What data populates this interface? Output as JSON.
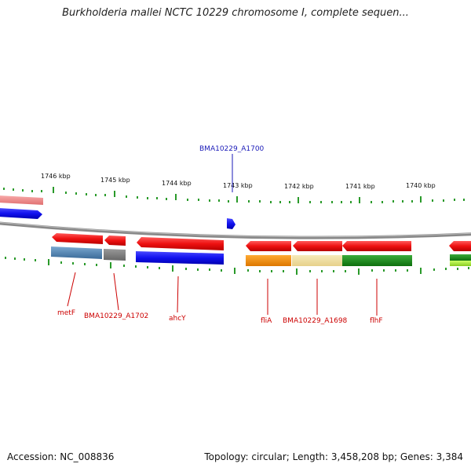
{
  "title": "Burkholderia mallei NCTC 10229 chromosome I, complete sequen...",
  "footer": {
    "accession": "Accession: NC_008836",
    "summary": "Topology: circular; Length: 3,458,208 bp; Genes: 3,384"
  },
  "kbp_ticks": [
    "1746 kbp",
    "1745 kbp",
    "1744 kbp",
    "1743 kbp",
    "1742 kbp",
    "1741 kbp",
    "1740 kbp"
  ],
  "gene_labels": {
    "top": "BMA10229_A1700",
    "metF": "metF",
    "a1702": "BMA10229_A1702",
    "ahcY": "ahcY",
    "fliA": "fliA",
    "a1698": "BMA10229_A1698",
    "flhF": "flhF"
  },
  "colors": {
    "feature_red": "#ee1111",
    "feature_blue": "#1111ee",
    "steel_blue": "#4a7fb0",
    "grey": "#777777",
    "orange": "#ee8800",
    "khaki": "#eedd99",
    "green": "#1a8a1a",
    "pink": "#ee8888",
    "tick_green": "#2a9a2a",
    "label_red": "#cc0000",
    "label_blue": "#1a1ab8"
  }
}
